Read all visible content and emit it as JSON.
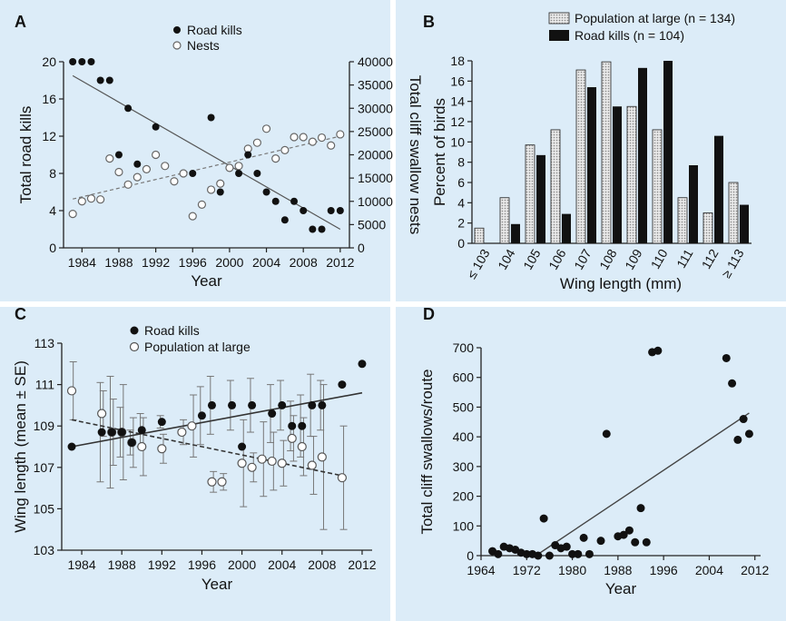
{
  "chart_data": [
    {
      "panel": "A",
      "type": "scatter",
      "xlabel": "Year",
      "ylabel": "Total road kills",
      "ylabel_right": "Total cliff swallow nests",
      "xlim": [
        1982,
        2013
      ],
      "ylim": [
        0,
        20
      ],
      "ylim_right": [
        0,
        40000
      ],
      "xticks": [
        "1984",
        "1988",
        "1992",
        "1996",
        "2000",
        "2004",
        "2008",
        "2012"
      ],
      "yticks": [
        "0",
        "4",
        "8",
        "12",
        "16",
        "20"
      ],
      "yticks_right": [
        "0",
        "5000",
        "10000",
        "15000",
        "20000",
        "25000",
        "30000",
        "35000",
        "40000"
      ],
      "series": [
        {
          "name": "Road kills",
          "axis": "left",
          "marker": "filled",
          "points": [
            [
              1983,
              20
            ],
            [
              1984,
              20
            ],
            [
              1985,
              20
            ],
            [
              1986,
              18
            ],
            [
              1987,
              18
            ],
            [
              1988,
              10
            ],
            [
              1989,
              15
            ],
            [
              1990,
              9
            ],
            [
              1992,
              13
            ],
            [
              1996,
              8
            ],
            [
              1998,
              14
            ],
            [
              1999,
              6
            ],
            [
              2001,
              8
            ],
            [
              2002,
              10
            ],
            [
              2003,
              8
            ],
            [
              2004,
              6
            ],
            [
              2005,
              5
            ],
            [
              2006,
              3
            ],
            [
              2007,
              5
            ],
            [
              2008,
              4
            ],
            [
              2009,
              2
            ],
            [
              2010,
              2
            ],
            [
              2011,
              4
            ],
            [
              2012,
              4
            ]
          ]
        },
        {
          "name": "Nests",
          "axis": "right",
          "marker": "open",
          "points": [
            [
              1983,
              7300
            ],
            [
              1984,
              10000
            ],
            [
              1985,
              10600
            ],
            [
              1986,
              10400
            ],
            [
              1987,
              19200
            ],
            [
              1988,
              16300
            ],
            [
              1989,
              13600
            ],
            [
              1990,
              15200
            ],
            [
              1991,
              16900
            ],
            [
              1992,
              20000
            ],
            [
              1993,
              17600
            ],
            [
              1994,
              14300
            ],
            [
              1995,
              16000
            ],
            [
              1996,
              6800
            ],
            [
              1997,
              9300
            ],
            [
              1998,
              12500
            ],
            [
              1999,
              13800
            ],
            [
              2000,
              17200
            ],
            [
              2001,
              17600
            ],
            [
              2002,
              21300
            ],
            [
              2003,
              22600
            ],
            [
              2004,
              25600
            ],
            [
              2005,
              19200
            ],
            [
              2006,
              21000
            ],
            [
              2007,
              23800
            ],
            [
              2008,
              23800
            ],
            [
              2009,
              22800
            ],
            [
              2010,
              23700
            ],
            [
              2011,
              22000
            ],
            [
              2012,
              24400
            ]
          ]
        }
      ],
      "trendlines": [
        {
          "series": "Road kills",
          "from": [
            1983,
            18.5
          ],
          "to": [
            2012,
            2
          ]
        },
        {
          "series": "Nests",
          "from": [
            1983,
            10500
          ],
          "to": [
            2012,
            24000
          ],
          "dashed": true
        }
      ]
    },
    {
      "panel": "B",
      "type": "bar",
      "xlabel": "Wing length (mm)",
      "ylabel": "Percent of birds",
      "ylim": [
        0,
        18
      ],
      "yticks": [
        "0",
        "2",
        "4",
        "6",
        "8",
        "10",
        "12",
        "14",
        "16",
        "18"
      ],
      "categories": [
        "≤ 103",
        "104",
        "105",
        "106",
        "107",
        "108",
        "109",
        "110",
        "111",
        "112",
        "≥ 113"
      ],
      "series": [
        {
          "name": "Population at large (n = 134)",
          "fill": "pattern",
          "values": [
            1.5,
            4.5,
            9.7,
            11.2,
            17.1,
            17.9,
            13.5,
            11.2,
            4.5,
            3.0,
            6.0
          ]
        },
        {
          "name": "Road kills (n = 104)",
          "fill": "black",
          "values": [
            0,
            1.9,
            8.7,
            2.9,
            15.4,
            13.5,
            17.3,
            18.0,
            7.7,
            10.6,
            3.8
          ]
        }
      ]
    },
    {
      "panel": "C",
      "type": "scatter",
      "xlabel": "Year",
      "ylabel": "Wing length (mean ± SE)",
      "xlim": [
        1982,
        2013
      ],
      "ylim": [
        103,
        113
      ],
      "xticks": [
        "1984",
        "1988",
        "1992",
        "1996",
        "2000",
        "2004",
        "2008",
        "2012"
      ],
      "yticks": [
        "103",
        "105",
        "107",
        "109",
        "111",
        "113"
      ],
      "series": [
        {
          "name": "Road kills",
          "marker": "filled",
          "points": [
            [
              1983,
              108,
              0.1
            ],
            [
              1986,
              108.7,
              2.4
            ],
            [
              1987,
              108.7,
              2.7
            ],
            [
              1988,
              108.7,
              1.2
            ],
            [
              1989,
              108.2,
              0.6
            ],
            [
              1990,
              108.8,
              0.8
            ],
            [
              1992,
              109.2,
              0.3
            ],
            [
              1996,
              109.5,
              1.4
            ],
            [
              1997,
              110,
              1.4
            ],
            [
              1999,
              110,
              1.2
            ],
            [
              2000,
              108,
              0.1
            ],
            [
              2001,
              110,
              1.3
            ],
            [
              2003,
              109.6,
              1.4
            ],
            [
              2004,
              110,
              1.2
            ],
            [
              2005,
              109,
              1.2
            ],
            [
              2006,
              109,
              1.5
            ],
            [
              2007,
              110,
              1.5
            ],
            [
              2008,
              110,
              1.2
            ],
            [
              2010,
              111,
              0.1
            ],
            [
              2012,
              112,
              0.1
            ]
          ]
        },
        {
          "name": "Population at large",
          "marker": "open",
          "points": [
            [
              1983,
              110.7,
              1.4
            ],
            [
              1986,
              109.6,
              1.1
            ],
            [
              1987,
              108.7,
              1.6
            ],
            [
              1988,
              108.7,
              2.3
            ],
            [
              1989,
              108.2,
              1.2
            ],
            [
              1990,
              108.0,
              1.4
            ],
            [
              1992,
              107.9,
              0.7
            ],
            [
              1994,
              108.7,
              0.6
            ],
            [
              1995,
              109.0,
              1.5
            ],
            [
              1997,
              106.3,
              0.5
            ],
            [
              1998,
              106.3,
              0.4
            ],
            [
              2000,
              107.2,
              2.1
            ],
            [
              2001,
              107.0,
              0.7
            ],
            [
              2002,
              107.4,
              1.8
            ],
            [
              2003,
              107.3,
              1.4
            ],
            [
              2004,
              107.2,
              1.1
            ],
            [
              2005,
              108.4,
              1.1
            ],
            [
              2006,
              108.0,
              1.4
            ],
            [
              2007,
              107.1,
              1.4
            ],
            [
              2008,
              107.5,
              3.5
            ],
            [
              2010,
              106.5,
              2.5
            ]
          ]
        }
      ],
      "trendlines": [
        {
          "series": "Road kills",
          "from": [
            1983,
            108
          ],
          "to": [
            2012,
            110.6
          ]
        },
        {
          "series": "Population at large",
          "from": [
            1983,
            109.3
          ],
          "to": [
            2010,
            106.6
          ],
          "dashed": true
        }
      ]
    },
    {
      "panel": "D",
      "type": "scatter",
      "xlabel": "Year",
      "ylabel": "Total cliff swallows/route",
      "xlim": [
        1964,
        2013
      ],
      "ylim": [
        0,
        700
      ],
      "xticks": [
        "1964",
        "1972",
        "1980",
        "1988",
        "1996",
        "2004",
        "2012"
      ],
      "yticks": [
        "0",
        "100",
        "200",
        "300",
        "400",
        "500",
        "600",
        "700"
      ],
      "series": [
        {
          "name": "",
          "marker": "filled",
          "points": [
            [
              1966,
              15
            ],
            [
              1967,
              5
            ],
            [
              1968,
              30
            ],
            [
              1969,
              25
            ],
            [
              1970,
              20
            ],
            [
              1971,
              10
            ],
            [
              1972,
              5
            ],
            [
              1973,
              5
            ],
            [
              1974,
              0
            ],
            [
              1975,
              125
            ],
            [
              1976,
              0
            ],
            [
              1977,
              35
            ],
            [
              1978,
              25
            ],
            [
              1979,
              30
            ],
            [
              1980,
              5
            ],
            [
              1981,
              5
            ],
            [
              1982,
              60
            ],
            [
              1983,
              5
            ],
            [
              1985,
              50
            ],
            [
              1986,
              410
            ],
            [
              1988,
              65
            ],
            [
              1989,
              70
            ],
            [
              1990,
              85
            ],
            [
              1991,
              45
            ],
            [
              1992,
              160
            ],
            [
              1993,
              45
            ],
            [
              1994,
              685
            ],
            [
              1995,
              690
            ],
            [
              2007,
              665
            ],
            [
              2008,
              580
            ],
            [
              2009,
              390
            ],
            [
              2010,
              460
            ],
            [
              2011,
              410
            ]
          ]
        }
      ],
      "trendlines": [
        {
          "from": [
            1974,
            5
          ],
          "to": [
            2011,
            480
          ]
        }
      ]
    }
  ]
}
